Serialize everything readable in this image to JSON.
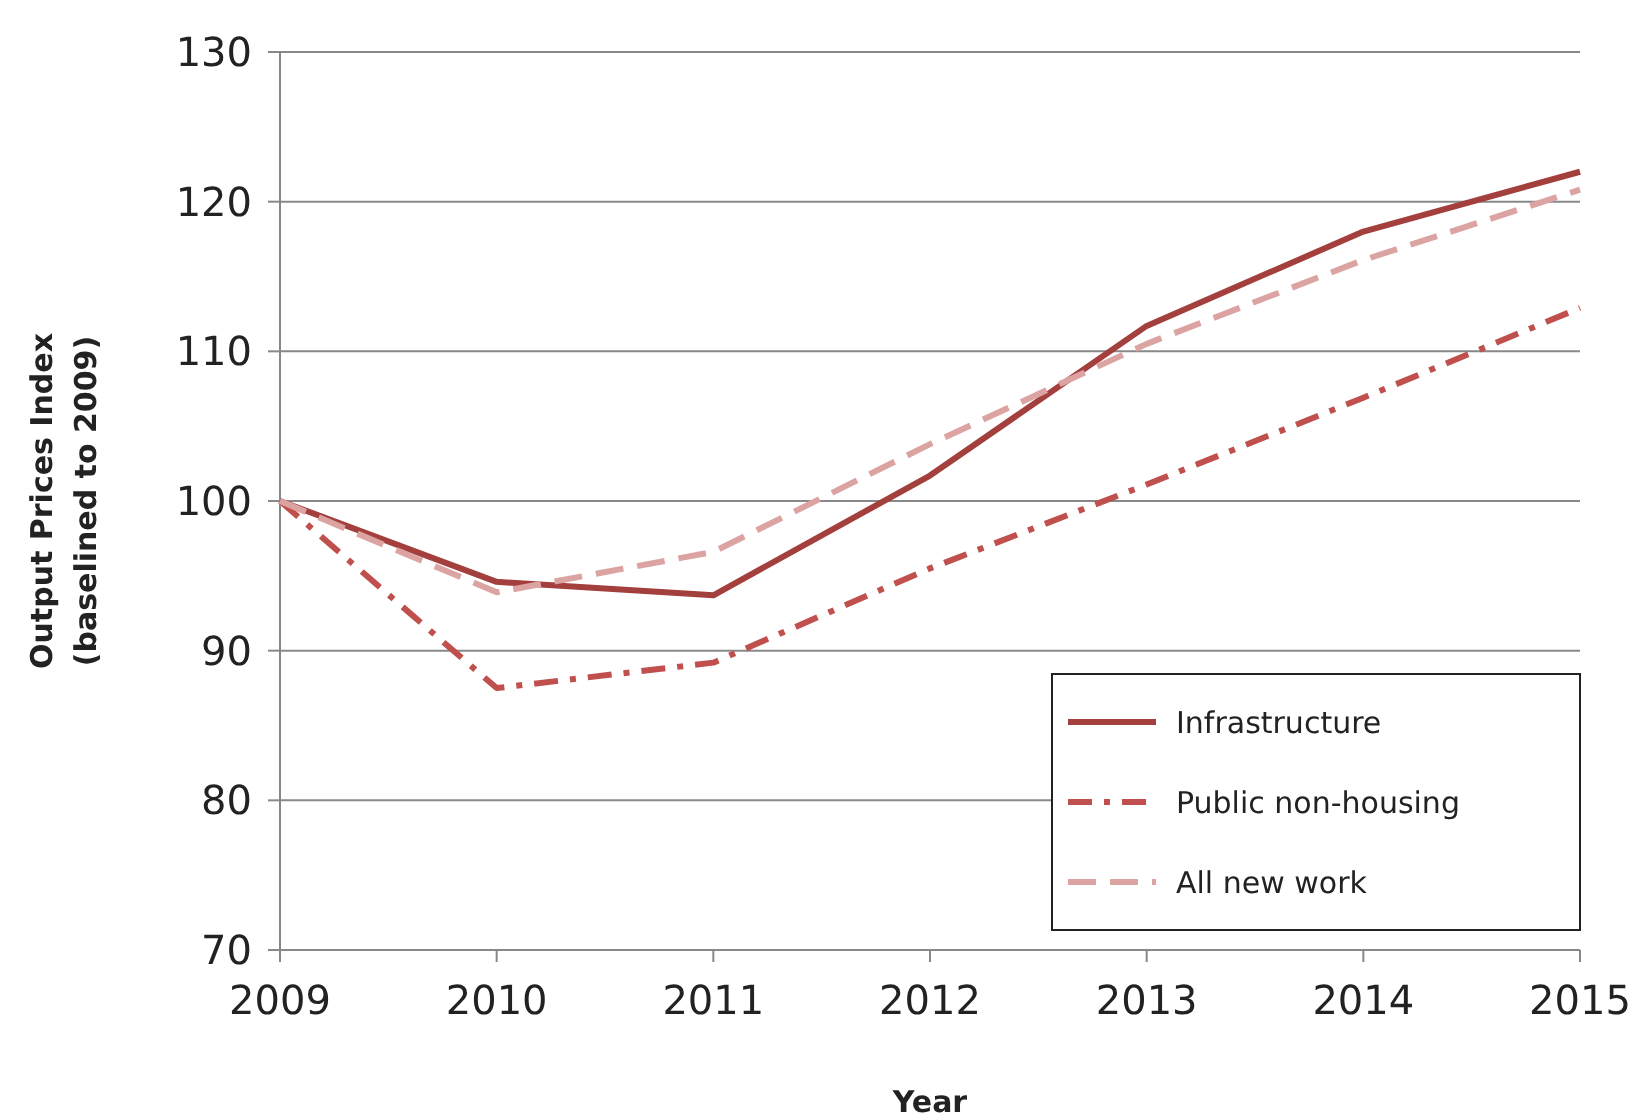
{
  "chart_data": {
    "type": "line",
    "xlabel": "Year",
    "ylabel": "Output Prices Index (baselined to 2009)",
    "x": [
      2009,
      2010,
      2011,
      2012,
      2013,
      2014,
      2015
    ],
    "xlim": [
      2009,
      2015
    ],
    "xticks": [
      2009,
      2010,
      2011,
      2012,
      2013,
      2014,
      2015
    ],
    "ylim": [
      70,
      130
    ],
    "yticks": [
      70,
      80,
      90,
      100,
      110,
      120,
      130
    ],
    "grid": "y",
    "legend": "bottom right",
    "series": [
      {
        "name": "Infrastructure",
        "color": "#a33f3c",
        "line_style": "solid",
        "values": [
          100,
          94.6,
          93.7,
          101.7,
          111.7,
          118,
          122
        ]
      },
      {
        "name": "Public non-housing",
        "color": "#c0504d",
        "line_style": "dashdot",
        "values": [
          100,
          87.5,
          89.2,
          95.5,
          101.1,
          106.9,
          112.9
        ]
      },
      {
        "name": "All new work",
        "color": "#dba3a2",
        "line_style": "dashed",
        "values": [
          100,
          93.9,
          96.6,
          103.8,
          110.5,
          116.1,
          120.8
        ]
      }
    ]
  }
}
